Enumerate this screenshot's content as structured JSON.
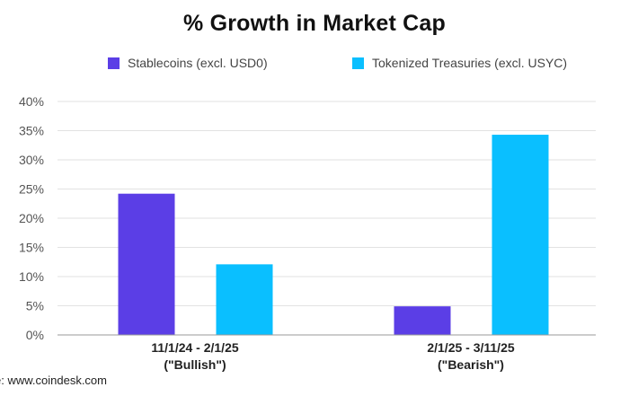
{
  "chart_data": {
    "type": "bar",
    "title": "% Growth in Market Cap",
    "categories": [
      [
        "11/1/24 - 2/1/25",
        "(\"Bullish\")"
      ],
      [
        "2/1/25 - 3/11/25",
        "(\"Bearish\")"
      ]
    ],
    "series": [
      {
        "name": "Stablecoins (excl. USD0)",
        "color": "#5b3ee6",
        "values": [
          24.2,
          4.9
        ]
      },
      {
        "name": "Tokenized Treasuries (excl. USYC)",
        "color": "#0abfff",
        "values": [
          12.1,
          34.3
        ]
      }
    ],
    "ylim": [
      0,
      40
    ],
    "yticks": [
      0,
      5,
      10,
      15,
      20,
      25,
      30,
      35,
      40
    ],
    "ytick_labels": [
      "0%",
      "5%",
      "10%",
      "15%",
      "20%",
      "25%",
      "30%",
      "35%",
      "40%"
    ],
    "xlabel": "",
    "ylabel": "",
    "grid": true,
    "legend_position": "top"
  },
  "source": "e: www.coindesk.com"
}
